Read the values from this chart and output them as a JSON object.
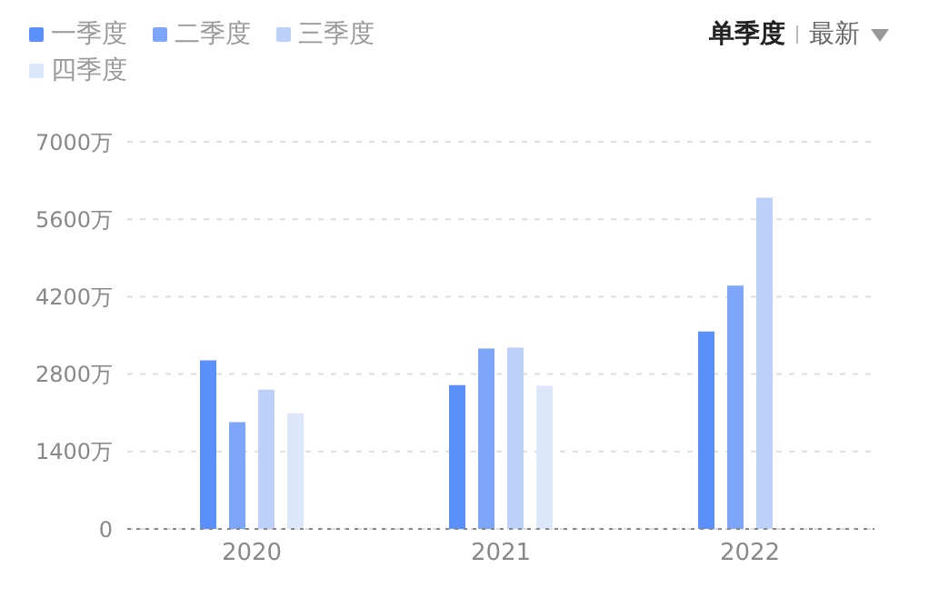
{
  "chart_data": {
    "type": "bar",
    "categories": [
      "2020",
      "2021",
      "2022"
    ],
    "series": [
      {
        "name": "一季度",
        "color": "#5b8ff9",
        "values": [
          3050,
          2600,
          3570
        ]
      },
      {
        "name": "二季度",
        "color": "#7da5f8",
        "values": [
          1930,
          3260,
          4400
        ]
      },
      {
        "name": "三季度",
        "color": "#bdd0f9",
        "values": [
          2520,
          3280,
          5990
        ]
      },
      {
        "name": "四季度",
        "color": "#dde7fb",
        "values": [
          2090,
          2590,
          null
        ]
      }
    ],
    "ylim": [
      0,
      7000
    ],
    "yticks": [
      0,
      {
        "value": 1400,
        "label": "1400万"
      },
      {
        "value": 2800,
        "label": "2800万"
      },
      {
        "value": 4200,
        "label": "4200万"
      },
      {
        "value": 5600,
        "label": "5600万"
      },
      {
        "value": 7000,
        "label": "7000万"
      }
    ],
    "grid": "y",
    "legend": "top left",
    "annotations": [
      "单季度",
      "最新"
    ]
  }
}
